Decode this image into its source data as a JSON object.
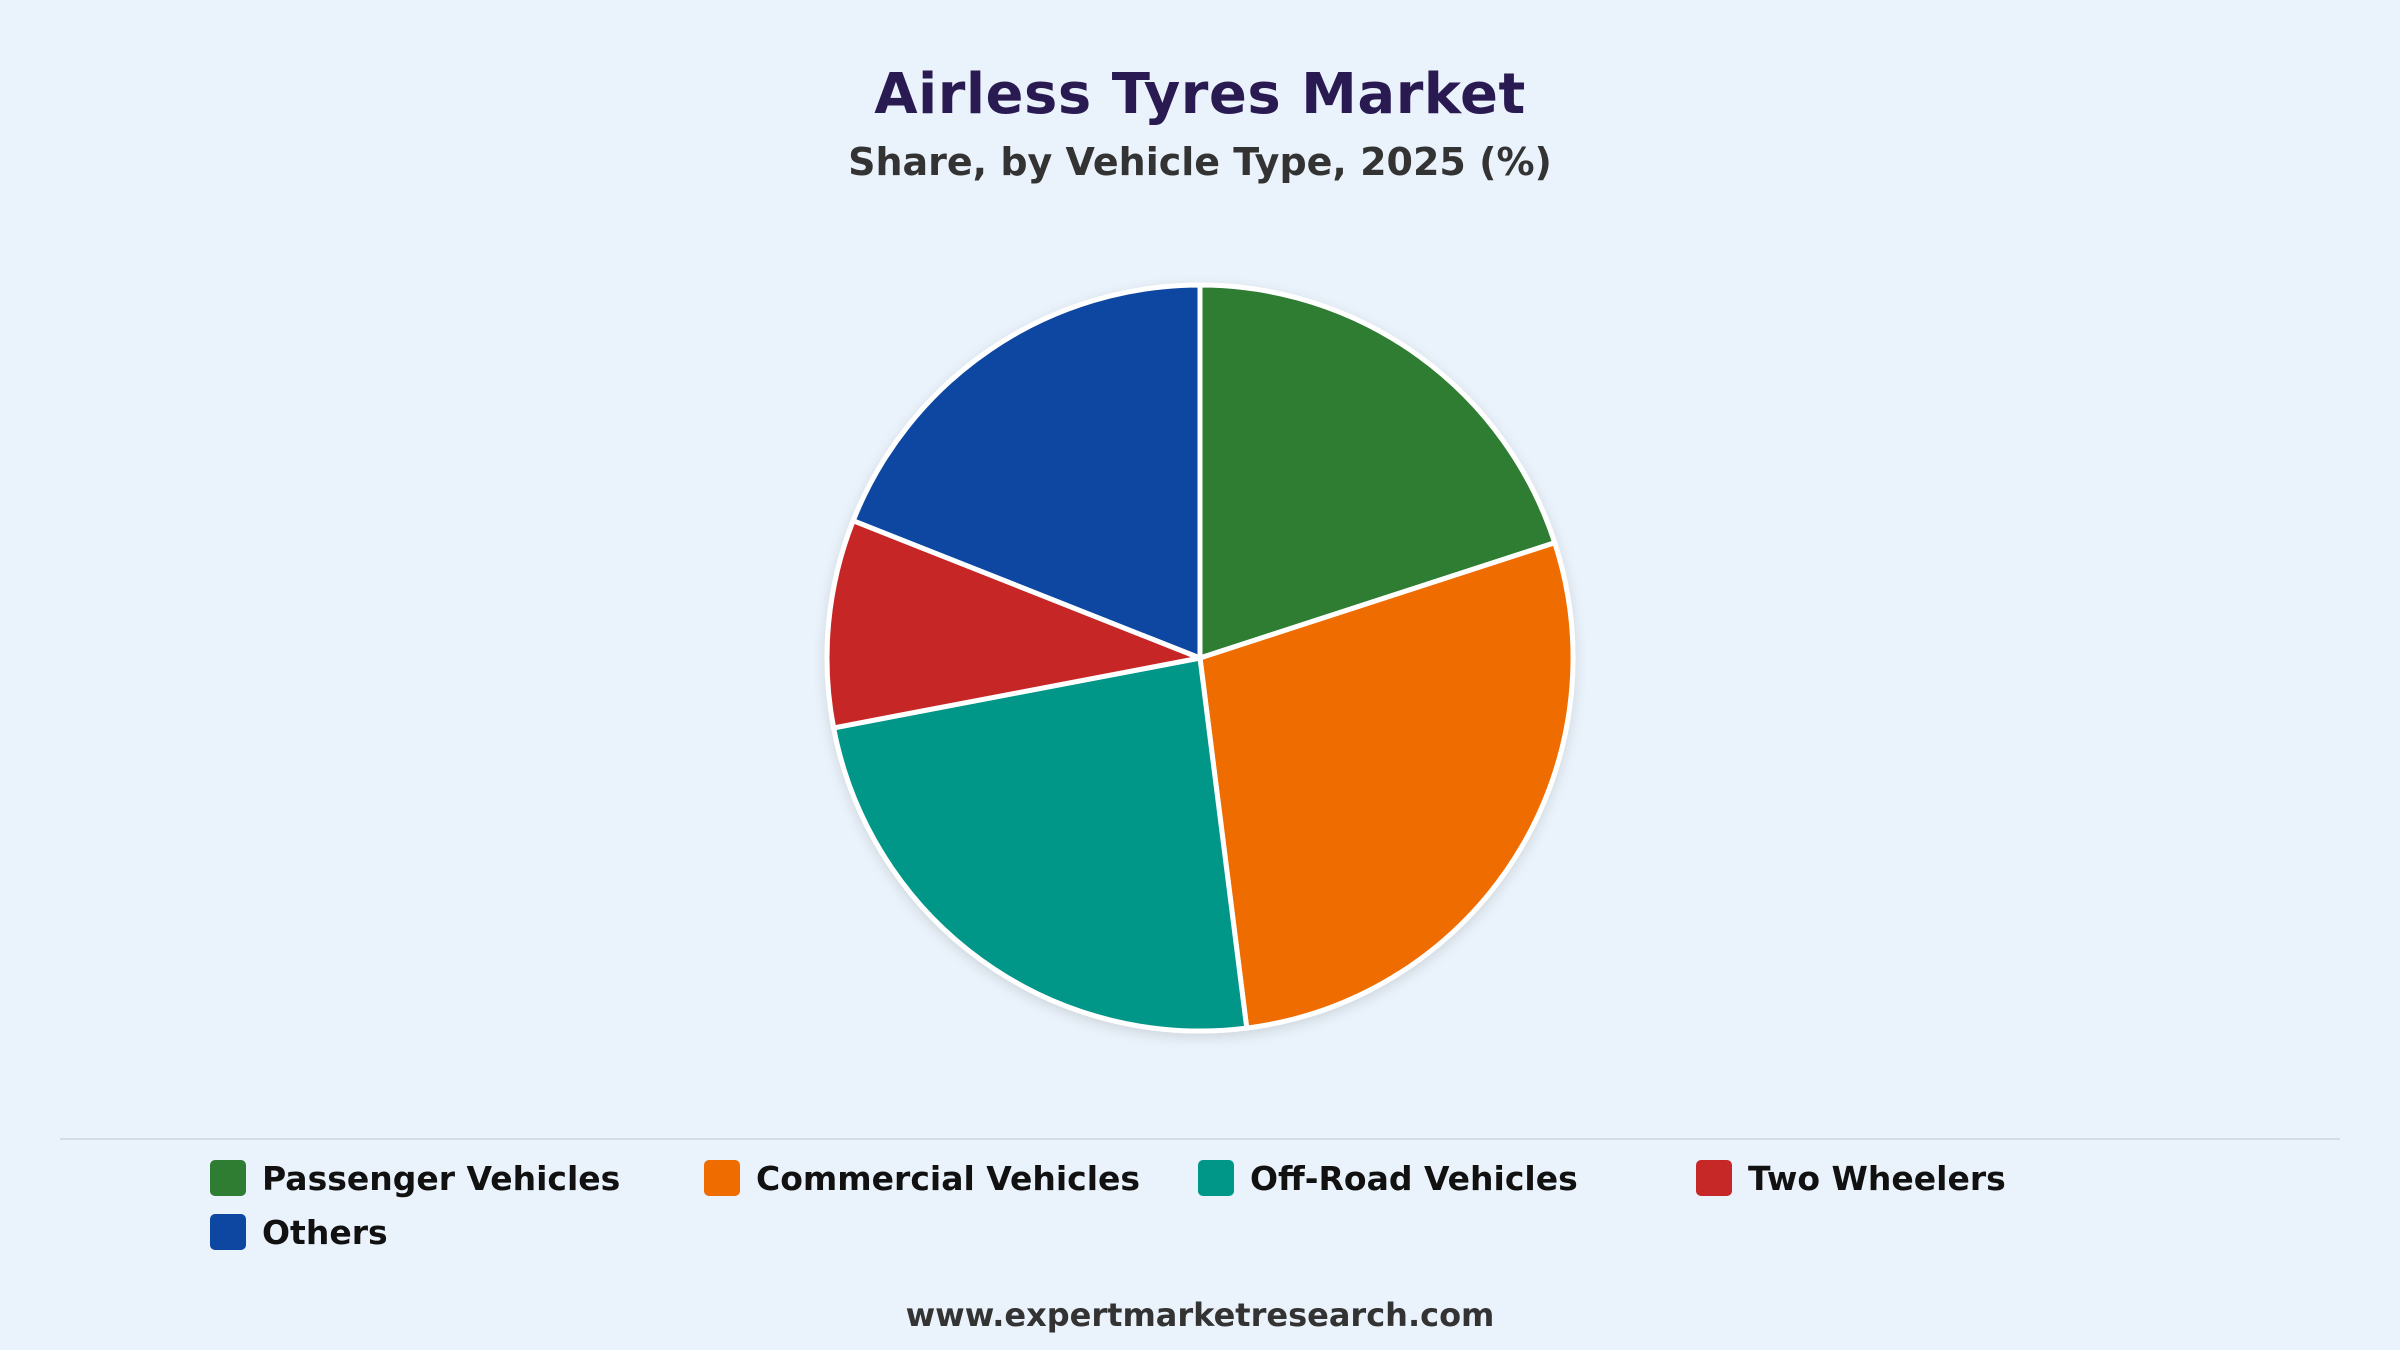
{
  "chart_data": {
    "type": "pie",
    "title": "Airless Tyres Market",
    "subtitle": "Share, by Vehicle Type, 2025 (%)",
    "categories": [
      "Passenger Vehicles",
      "Commercial Vehicles",
      "Off-Road Vehicles",
      "Two Wheelers",
      "Others"
    ],
    "values": [
      20,
      28,
      24,
      9,
      19
    ],
    "colors": [
      "#2e7d32",
      "#ef6c00",
      "#009688",
      "#c62828",
      "#0d47a1"
    ],
    "legend_position": "bottom",
    "start_angle": "top, clockwise"
  },
  "footer": {
    "source": "www.expertmarketresearch.com"
  }
}
